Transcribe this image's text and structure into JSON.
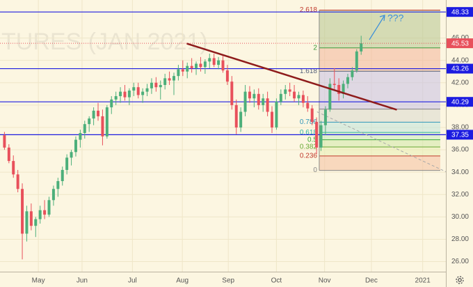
{
  "chart_data": {
    "type": "candlestick",
    "watermark": "TURES (JAN 2021)",
    "background": "#fcf6e1",
    "grid": true,
    "grid_color": "#efe6c8",
    "up_color": "#4caf7a",
    "down_color": "#e8505b",
    "xlim": [
      -1,
      99
    ],
    "ylim": [
      25.1,
      49.4
    ],
    "xticks": [
      {
        "value": 7.6,
        "label": "May"
      },
      {
        "value": 17.4,
        "label": "Jun"
      },
      {
        "value": 28.7,
        "label": "Jul"
      },
      {
        "value": 39.9,
        "label": "Aug"
      },
      {
        "value": 50.2,
        "label": "Sep"
      },
      {
        "value": 61,
        "label": "Oct"
      },
      {
        "value": 71.8,
        "label": "Nov"
      },
      {
        "value": 82.3,
        "label": "Dec"
      },
      {
        "value": 93.8,
        "label": "2021"
      }
    ],
    "yticks": [
      {
        "value": 26,
        "label": "26.00"
      },
      {
        "value": 28,
        "label": "28.00"
      },
      {
        "value": 30,
        "label": "30.00"
      },
      {
        "value": 32,
        "label": "32.00"
      },
      {
        "value": 34,
        "label": "34.00"
      },
      {
        "value": 36,
        "label": "36.00"
      },
      {
        "value": 38,
        "label": "38.00"
      },
      {
        "value": 40,
        "label": "40.00"
      },
      {
        "value": 42,
        "label": "42.00"
      },
      {
        "value": 44,
        "label": "44.00"
      },
      {
        "value": 46,
        "label": "46.00"
      }
    ],
    "candles": [
      [
        37.3,
        37.6,
        36.0,
        36.2
      ],
      [
        36.2,
        36.5,
        34.8,
        35.0
      ],
      [
        35.0,
        35.5,
        33.5,
        33.8
      ],
      [
        33.8,
        34.2,
        32.2,
        32.5
      ],
      [
        32.5,
        33.0,
        26.2,
        28.5
      ],
      [
        28.5,
        31.0,
        27.8,
        30.5
      ],
      [
        30.5,
        31.2,
        28.8,
        29.2
      ],
      [
        29.2,
        30.0,
        28.2,
        29.8
      ],
      [
        29.8,
        31.0,
        29.4,
        30.6
      ],
      [
        30.6,
        31.5,
        29.8,
        30.2
      ],
      [
        30.2,
        31.8,
        30.0,
        31.5
      ],
      [
        31.5,
        32.8,
        31.0,
        32.5
      ],
      [
        32.5,
        33.5,
        31.8,
        33.2
      ],
      [
        33.2,
        34.5,
        32.8,
        34.2
      ],
      [
        34.2,
        35.6,
        33.8,
        35.3
      ],
      [
        35.3,
        36.0,
        34.6,
        35.8
      ],
      [
        35.8,
        37.2,
        35.4,
        36.9
      ],
      [
        36.9,
        37.8,
        36.2,
        37.5
      ],
      [
        37.5,
        38.6,
        37.0,
        38.3
      ],
      [
        38.3,
        39.0,
        37.6,
        38.8
      ],
      [
        38.8,
        39.8,
        38.2,
        39.5
      ],
      [
        39.5,
        40.2,
        38.6,
        39.0
      ],
      [
        39.0,
        39.6,
        36.4,
        37.2
      ],
      [
        37.2,
        40.0,
        37.0,
        39.8
      ],
      [
        39.8,
        40.8,
        39.2,
        40.5
      ],
      [
        40.5,
        41.2,
        40.0,
        40.8
      ],
      [
        40.8,
        41.6,
        40.2,
        41.2
      ],
      [
        41.2,
        41.8,
        40.4,
        40.7
      ],
      [
        40.7,
        41.5,
        40.0,
        41.3
      ],
      [
        41.3,
        42.0,
        40.8,
        41.6
      ],
      [
        41.6,
        42.0,
        40.6,
        40.9
      ],
      [
        40.9,
        41.5,
        40.2,
        41.2
      ],
      [
        41.2,
        41.9,
        40.8,
        41.5
      ],
      [
        41.5,
        42.4,
        41.0,
        42.0
      ],
      [
        42.0,
        42.5,
        41.2,
        41.6
      ],
      [
        41.6,
        42.2,
        40.5,
        41.8
      ],
      [
        41.8,
        42.8,
        41.4,
        42.4
      ],
      [
        42.4,
        43.0,
        41.8,
        42.2
      ],
      [
        42.2,
        42.9,
        40.9,
        42.6
      ],
      [
        42.6,
        43.6,
        42.2,
        43.2
      ],
      [
        43.2,
        44.0,
        42.6,
        43.0
      ],
      [
        43.0,
        43.8,
        42.4,
        43.5
      ],
      [
        43.5,
        44.2,
        42.9,
        43.3
      ],
      [
        43.3,
        43.9,
        42.7,
        43.7
      ],
      [
        43.7,
        44.3,
        43.0,
        43.4
      ],
      [
        43.4,
        44.1,
        42.8,
        43.9
      ],
      [
        43.9,
        44.6,
        43.3,
        44.2
      ],
      [
        44.2,
        44.6,
        43.4,
        43.6
      ],
      [
        43.6,
        44.3,
        43.2,
        44.0
      ],
      [
        44.0,
        44.4,
        42.9,
        43.1
      ],
      [
        43.1,
        43.6,
        41.8,
        42.1
      ],
      [
        42.1,
        42.6,
        39.6,
        40.0
      ],
      [
        40.0,
        40.5,
        37.4,
        38.0
      ],
      [
        38.0,
        39.8,
        37.6,
        39.4
      ],
      [
        39.4,
        41.8,
        39.0,
        41.2
      ],
      [
        41.2,
        41.7,
        40.2,
        40.6
      ],
      [
        40.6,
        41.4,
        39.8,
        41.0
      ],
      [
        41.0,
        41.5,
        39.6,
        40.0
      ],
      [
        40.0,
        41.0,
        39.4,
        40.6
      ],
      [
        40.6,
        41.2,
        39.0,
        39.4
      ],
      [
        39.4,
        39.9,
        37.5,
        38.0
      ],
      [
        38.0,
        40.6,
        37.8,
        40.3
      ],
      [
        40.3,
        41.4,
        40.0,
        41.0
      ],
      [
        41.0,
        41.8,
        40.5,
        41.4
      ],
      [
        41.4,
        42.0,
        40.8,
        41.2
      ],
      [
        41.2,
        41.8,
        40.3,
        40.6
      ],
      [
        40.6,
        41.2,
        40.0,
        40.9
      ],
      [
        40.9,
        41.3,
        39.8,
        40.2
      ],
      [
        40.2,
        40.8,
        39.4,
        39.7
      ],
      [
        39.7,
        40.0,
        38.2,
        38.5
      ],
      [
        38.5,
        38.9,
        35.6,
        36.2
      ],
      [
        36.2,
        38.6,
        35.9,
        38.2
      ],
      [
        38.2,
        39.9,
        37.3,
        39.6
      ],
      [
        39.6,
        42.4,
        39.4,
        41.9
      ],
      [
        41.9,
        43.3,
        41.4,
        41.8
      ],
      [
        41.8,
        42.4,
        40.4,
        41.0
      ],
      [
        41.0,
        42.2,
        40.6,
        41.9
      ],
      [
        41.9,
        42.8,
        41.5,
        42.5
      ],
      [
        42.5,
        43.4,
        42.2,
        43.1
      ],
      [
        43.1,
        45.0,
        42.9,
        44.8
      ],
      [
        44.8,
        46.2,
        44.5,
        45.53
      ]
    ],
    "last_price_color": "#e8505b",
    "horizontal_lines": {
      "color": "#1c1ce0",
      "values": [
        48.33,
        43.26,
        40.29,
        37.35
      ]
    },
    "trendline": {
      "color": "#8e1b1b",
      "x": [
        40.9,
        88
      ],
      "y": [
        45.5,
        39.58
      ]
    },
    "projection": {
      "color": "#a8a8a8",
      "x": [
        70.1,
        99
      ],
      "y": [
        39.4,
        34.04
      ]
    },
    "fibonacci": {
      "x": [
        70.6,
        97.75
      ],
      "levels": [
        {
          "ratio": 2.618,
          "price": 48.5,
          "color": "#c0392b",
          "fill": "#b5c48f"
        },
        {
          "ratio": 2,
          "price": 45.12,
          "color": "#3c9a3c",
          "fill": "#f2b59a"
        },
        {
          "ratio": 1.618,
          "price": 43.03,
          "color": "#55607a",
          "fill": "#c6bfe6"
        },
        {
          "price": 39.64,
          "color": "#808080",
          "fill": "#d9d9d0"
        },
        {
          "ratio": 0.786,
          "price": 38.47,
          "color": "#2f95b8",
          "fill": "#bfe3dc"
        },
        {
          "ratio": 0.618,
          "price": 37.55,
          "color": "#2ab3a0",
          "fill": "#c8ebc0"
        },
        {
          "ratio": 0.5,
          "price": 36.9,
          "color": "#37a837",
          "fill": "#cfe8a8"
        },
        {
          "ratio": 0.382,
          "price": 36.25,
          "color": "#66a832",
          "fill": "#e7efb5"
        },
        {
          "ratio": 0.236,
          "price": 35.45,
          "color": "#c0392b",
          "fill": "#f4bfa0"
        },
        {
          "ratio": 0,
          "price": 34.16,
          "color": "#888888"
        }
      ]
    },
    "annotation": {
      "text": "???",
      "color": "#3b8fd9"
    }
  }
}
